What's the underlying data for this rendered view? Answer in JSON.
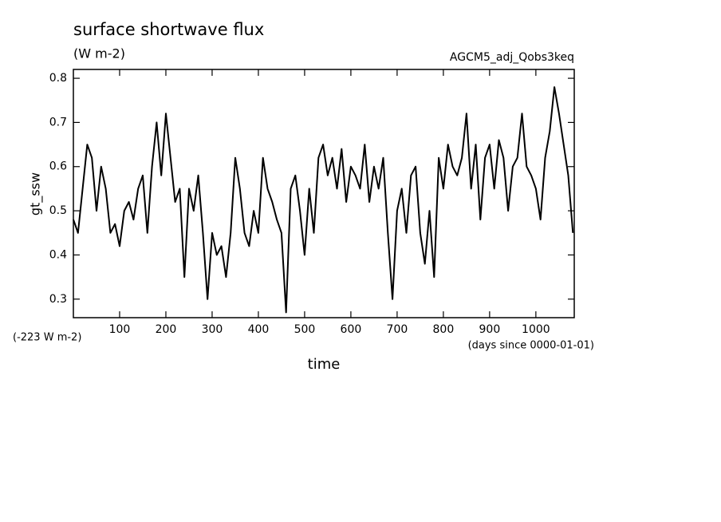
{
  "chart_data": {
    "type": "line",
    "title": "surface shortwave flux",
    "subtitle": "(W m-2)",
    "annotations": [
      "AGCM5_adj_Qobs3keq",
      "(-223 W m-2)",
      "(days since 0000-01-01)"
    ],
    "xlabel": "time",
    "ylabel": "gt_ssw",
    "xlim": [
      0,
      1083
    ],
    "ylim": [
      0.258,
      0.82
    ],
    "xticks": [
      100,
      200,
      300,
      400,
      500,
      600,
      700,
      800,
      900,
      1000
    ],
    "yticks": [
      0.3,
      0.4,
      0.5,
      0.6,
      0.7,
      0.8
    ],
    "x": [
      0,
      10,
      20,
      30,
      40,
      50,
      60,
      70,
      80,
      90,
      100,
      110,
      120,
      130,
      140,
      150,
      160,
      170,
      180,
      190,
      200,
      210,
      220,
      230,
      240,
      250,
      260,
      270,
      280,
      290,
      300,
      310,
      320,
      330,
      340,
      350,
      360,
      370,
      380,
      390,
      400,
      410,
      420,
      430,
      440,
      450,
      460,
      470,
      480,
      490,
      500,
      510,
      520,
      530,
      540,
      550,
      560,
      570,
      580,
      590,
      600,
      610,
      620,
      630,
      640,
      650,
      660,
      670,
      680,
      690,
      700,
      710,
      720,
      730,
      740,
      750,
      760,
      770,
      780,
      790,
      800,
      810,
      820,
      830,
      840,
      850,
      860,
      870,
      880,
      890,
      900,
      910,
      920,
      930,
      940,
      950,
      960,
      970,
      980,
      990,
      1000,
      1010,
      1020,
      1030,
      1040,
      1050,
      1060,
      1070,
      1080
    ],
    "series": [
      {
        "name": "gt_ssw",
        "color": "#000000",
        "values": [
          0.48,
          0.45,
          0.55,
          0.65,
          0.62,
          0.5,
          0.6,
          0.55,
          0.45,
          0.47,
          0.42,
          0.5,
          0.52,
          0.48,
          0.55,
          0.58,
          0.45,
          0.6,
          0.7,
          0.58,
          0.72,
          0.62,
          0.52,
          0.55,
          0.35,
          0.55,
          0.5,
          0.58,
          0.45,
          0.3,
          0.45,
          0.4,
          0.42,
          0.35,
          0.45,
          0.62,
          0.55,
          0.45,
          0.42,
          0.5,
          0.45,
          0.62,
          0.55,
          0.52,
          0.48,
          0.45,
          0.27,
          0.55,
          0.58,
          0.5,
          0.4,
          0.55,
          0.45,
          0.62,
          0.65,
          0.58,
          0.62,
          0.55,
          0.64,
          0.52,
          0.6,
          0.58,
          0.55,
          0.65,
          0.52,
          0.6,
          0.55,
          0.62,
          0.45,
          0.3,
          0.5,
          0.55,
          0.45,
          0.58,
          0.6,
          0.45,
          0.38,
          0.5,
          0.35,
          0.62,
          0.55,
          0.65,
          0.6,
          0.58,
          0.62,
          0.72,
          0.55,
          0.65,
          0.48,
          0.62,
          0.65,
          0.55,
          0.66,
          0.62,
          0.5,
          0.6,
          0.62,
          0.72,
          0.6,
          0.58,
          0.55,
          0.48,
          0.62,
          0.68,
          0.78,
          0.72,
          0.65,
          0.58,
          0.45
        ]
      }
    ]
  }
}
